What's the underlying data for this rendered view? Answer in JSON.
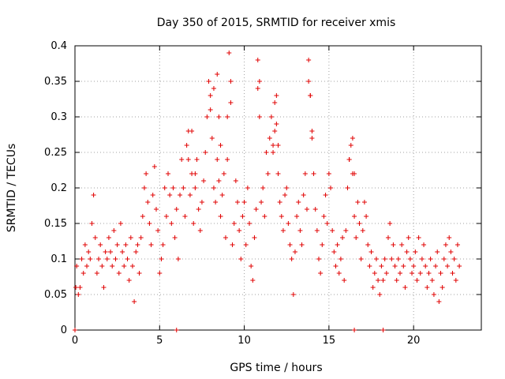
{
  "chart_data": {
    "type": "scatter",
    "title": "Day 350 of 2015, SRMTID for receiver xmis",
    "xlabel": "GPS time / hours",
    "ylabel": "SRMTID / TECUs",
    "xlim": [
      0,
      24
    ],
    "ylim": [
      0,
      0.4
    ],
    "x_ticks": [
      0,
      5,
      10,
      15,
      20
    ],
    "x_tick_labels": [
      "0",
      "5",
      "10",
      "15",
      "20"
    ],
    "y_ticks": [
      0,
      0.05,
      0.1,
      0.15,
      0.2,
      0.25,
      0.3,
      0.35,
      0.4
    ],
    "y_tick_labels": [
      "0",
      "0.05",
      "0.1",
      "0.15",
      "0.2",
      "0.25",
      "0.3",
      "0.35",
      "0.4"
    ],
    "grid": true,
    "marker": "+",
    "color": "#e00000",
    "series": [
      {
        "name": "SRMTID",
        "x": [
          0.0,
          0.05,
          6.0,
          16.5,
          18.2,
          0.1,
          0.2,
          0.3,
          0.4,
          0.5,
          0.6,
          0.7,
          0.8,
          0.9,
          1.0,
          1.1,
          1.2,
          1.3,
          1.4,
          1.5,
          1.6,
          1.7,
          1.8,
          1.9,
          2.0,
          2.1,
          2.2,
          2.3,
          2.4,
          2.5,
          2.6,
          2.7,
          2.8,
          2.9,
          3.0,
          3.1,
          3.2,
          3.3,
          3.4,
          3.5,
          3.6,
          3.7,
          3.8,
          3.9,
          4.0,
          4.1,
          4.2,
          4.3,
          4.4,
          4.5,
          4.6,
          4.7,
          4.8,
          4.9,
          5.0,
          5.1,
          5.2,
          5.3,
          5.4,
          5.5,
          5.6,
          5.7,
          5.8,
          5.9,
          6.0,
          6.1,
          6.2,
          6.3,
          6.4,
          6.5,
          6.6,
          6.7,
          6.8,
          6.9,
          7.0,
          7.1,
          7.2,
          7.3,
          7.4,
          7.5,
          7.6,
          7.7,
          7.8,
          7.9,
          8.0,
          8.1,
          8.2,
          8.3,
          8.4,
          8.5,
          8.6,
          8.7,
          8.8,
          8.9,
          9.0,
          9.1,
          9.2,
          9.3,
          9.4,
          9.5,
          9.6,
          9.7,
          9.8,
          9.9,
          10.0,
          10.1,
          10.2,
          10.3,
          10.4,
          10.5,
          10.6,
          10.7,
          10.8,
          10.9,
          11.0,
          11.1,
          11.2,
          11.3,
          11.4,
          11.5,
          11.6,
          11.7,
          11.8,
          11.9,
          12.0,
          12.1,
          12.2,
          12.3,
          12.4,
          12.5,
          12.6,
          12.7,
          12.8,
          12.9,
          13.0,
          13.1,
          13.2,
          13.3,
          13.4,
          13.5,
          13.6,
          13.7,
          13.8,
          13.9,
          14.0,
          14.1,
          14.2,
          14.3,
          14.4,
          14.5,
          14.6,
          14.7,
          14.8,
          14.9,
          15.0,
          15.1,
          15.2,
          15.3,
          15.4,
          15.5,
          15.6,
          15.7,
          15.8,
          15.9,
          16.0,
          16.1,
          16.2,
          16.3,
          16.4,
          16.5,
          16.6,
          16.7,
          16.8,
          16.9,
          17.0,
          17.1,
          17.2,
          17.3,
          17.4,
          17.5,
          17.6,
          17.7,
          17.8,
          17.9,
          18.0,
          18.1,
          18.2,
          18.3,
          18.4,
          18.5,
          18.6,
          18.7,
          18.8,
          18.9,
          19.0,
          19.1,
          19.2,
          19.3,
          19.4,
          19.5,
          19.6,
          19.7,
          19.8,
          19.9,
          20.0,
          20.1,
          20.2,
          20.3,
          20.4,
          20.5,
          20.6,
          20.7,
          20.8,
          20.9,
          21.0,
          21.1,
          21.2,
          21.3,
          21.4,
          21.5,
          21.6,
          21.7,
          21.8,
          21.9,
          22.0,
          22.1,
          22.2,
          22.3,
          22.4,
          22.5,
          22.6,
          22.7,
          6.7,
          6.9,
          7.1,
          8.0,
          8.2,
          8.4,
          8.5,
          8.6,
          9.0,
          9.2,
          10.8,
          10.9,
          11.7,
          11.8,
          11.9,
          12.0,
          13.8,
          13.9,
          14.0,
          16.2,
          16.4,
          16.5
        ],
        "y": [
          0.0,
          0.06,
          0.0,
          0.0,
          0.0,
          0.09,
          0.05,
          0.06,
          0.1,
          0.08,
          0.12,
          0.09,
          0.11,
          0.1,
          0.15,
          0.19,
          0.13,
          0.08,
          0.1,
          0.12,
          0.09,
          0.06,
          0.11,
          0.1,
          0.13,
          0.11,
          0.09,
          0.14,
          0.1,
          0.12,
          0.08,
          0.15,
          0.11,
          0.09,
          0.12,
          0.1,
          0.07,
          0.13,
          0.09,
          0.04,
          0.11,
          0.12,
          0.08,
          0.13,
          0.16,
          0.2,
          0.22,
          0.18,
          0.15,
          0.12,
          0.19,
          0.23,
          0.17,
          0.14,
          0.08,
          0.1,
          0.12,
          0.2,
          0.16,
          0.22,
          0.19,
          0.15,
          0.2,
          0.13,
          0.17,
          0.1,
          0.19,
          0.24,
          0.2,
          0.16,
          0.26,
          0.28,
          0.19,
          0.22,
          0.15,
          0.2,
          0.24,
          0.17,
          0.14,
          0.18,
          0.21,
          0.25,
          0.3,
          0.35,
          0.33,
          0.27,
          0.2,
          0.18,
          0.24,
          0.21,
          0.16,
          0.19,
          0.22,
          0.13,
          0.24,
          0.39,
          0.35,
          0.12,
          0.15,
          0.21,
          0.18,
          0.14,
          0.1,
          0.16,
          0.18,
          0.12,
          0.2,
          0.15,
          0.09,
          0.07,
          0.13,
          0.17,
          0.38,
          0.35,
          0.18,
          0.2,
          0.16,
          0.25,
          0.22,
          0.27,
          0.3,
          0.26,
          0.32,
          0.29,
          0.22,
          0.18,
          0.16,
          0.14,
          0.19,
          0.2,
          0.15,
          0.12,
          0.1,
          0.05,
          0.11,
          0.16,
          0.18,
          0.14,
          0.12,
          0.19,
          0.22,
          0.17,
          0.38,
          0.33,
          0.27,
          0.22,
          0.17,
          0.14,
          0.1,
          0.08,
          0.12,
          0.16,
          0.19,
          0.15,
          0.22,
          0.2,
          0.14,
          0.11,
          0.09,
          0.12,
          0.08,
          0.1,
          0.13,
          0.07,
          0.14,
          0.2,
          0.24,
          0.26,
          0.22,
          0.16,
          0.13,
          0.18,
          0.15,
          0.1,
          0.14,
          0.18,
          0.16,
          0.12,
          0.09,
          0.11,
          0.06,
          0.08,
          0.1,
          0.07,
          0.05,
          0.09,
          0.07,
          0.1,
          0.08,
          0.13,
          0.15,
          0.1,
          0.12,
          0.09,
          0.07,
          0.1,
          0.08,
          0.12,
          0.09,
          0.06,
          0.11,
          0.13,
          0.1,
          0.08,
          0.09,
          0.11,
          0.07,
          0.13,
          0.08,
          0.1,
          0.12,
          0.09,
          0.06,
          0.08,
          0.1,
          0.07,
          0.05,
          0.09,
          0.11,
          0.04,
          0.08,
          0.06,
          0.1,
          0.12,
          0.09,
          0.13,
          0.11,
          0.08,
          0.1,
          0.07,
          0.12,
          0.09,
          0.24,
          0.28,
          0.22,
          0.31,
          0.34,
          0.36,
          0.3,
          0.26,
          0.3,
          0.32,
          0.34,
          0.3,
          0.25,
          0.28,
          0.33,
          0.26,
          0.35,
          0.33,
          0.28,
          0.24,
          0.27,
          0.22
        ]
      }
    ]
  }
}
